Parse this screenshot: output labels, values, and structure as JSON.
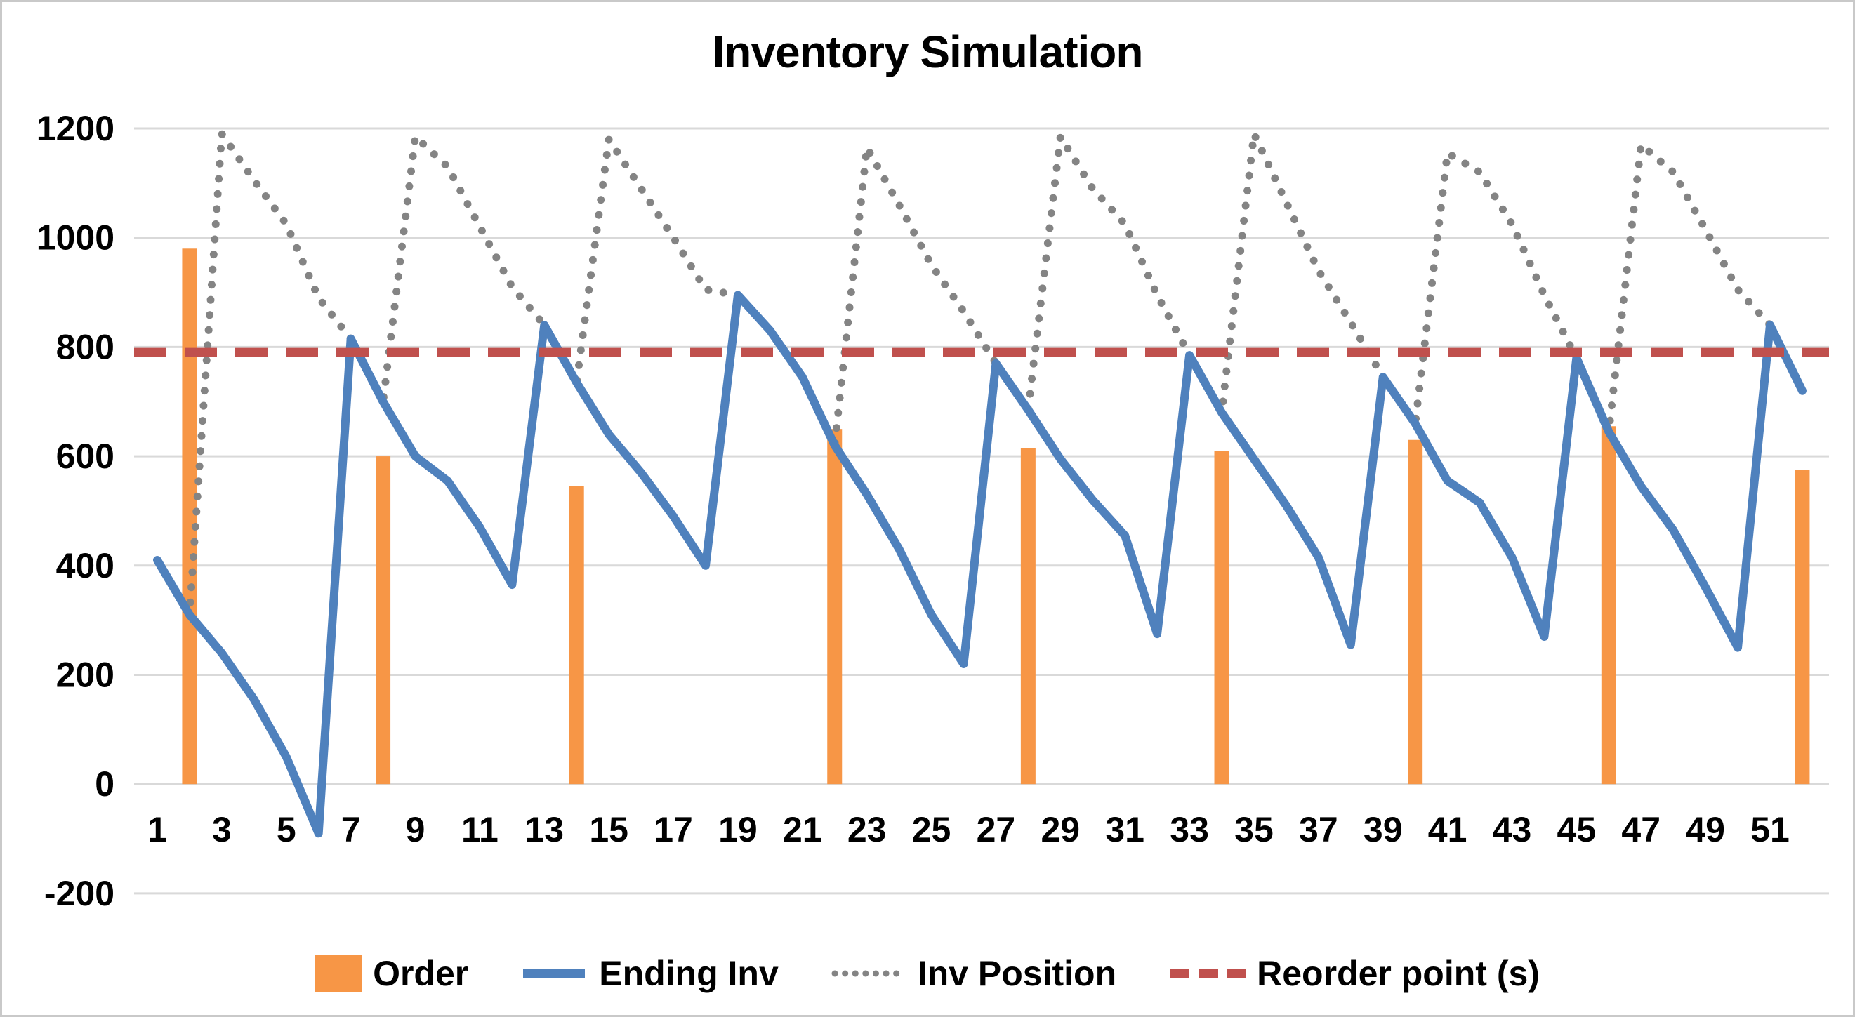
{
  "chart_data": {
    "type": "bar+line",
    "title": "Inventory Simulation",
    "n_periods": 52,
    "x_tick_labels": [
      1,
      3,
      5,
      7,
      9,
      11,
      13,
      15,
      17,
      19,
      21,
      23,
      25,
      27,
      29,
      31,
      33,
      35,
      37,
      39,
      41,
      43,
      45,
      47,
      49,
      51
    ],
    "y_ticks": [
      -200,
      0,
      200,
      400,
      600,
      800,
      1000,
      1200
    ],
    "ylim": [
      -200,
      1200
    ],
    "grid": true,
    "grid_color": "#D9D9D9",
    "legend_position": "bottom",
    "series": [
      {
        "name": "Order",
        "type": "bar",
        "color": "#F79646",
        "values": [
          0,
          980,
          0,
          0,
          0,
          0,
          0,
          600,
          0,
          0,
          0,
          0,
          0,
          545,
          0,
          0,
          0,
          0,
          0,
          0,
          0,
          650,
          0,
          0,
          0,
          0,
          0,
          615,
          0,
          0,
          0,
          0,
          0,
          610,
          0,
          0,
          0,
          0,
          0,
          630,
          0,
          0,
          0,
          0,
          0,
          655,
          0,
          0,
          0,
          0,
          0,
          575
        ]
      },
      {
        "name": "Ending Inv",
        "type": "line",
        "color": "#4F81BD",
        "values": [
          410,
          310,
          240,
          155,
          50,
          -90,
          815,
          700,
          600,
          555,
          470,
          365,
          840,
          735,
          640,
          570,
          490,
          400,
          895,
          830,
          745,
          620,
          530,
          430,
          310,
          220,
          770,
          685,
          595,
          520,
          455,
          275,
          785,
          680,
          595,
          510,
          415,
          255,
          745,
          660,
          555,
          515,
          415,
          270,
          780,
          645,
          545,
          465,
          360,
          250,
          840,
          720
        ]
      },
      {
        "name": "Inv Position",
        "type": "dotted-line",
        "color": "#848484",
        "values": [
          410,
          310,
          1190,
          1105,
          1025,
          890,
          815,
          700,
          1185,
          1130,
          1020,
          910,
          840,
          735,
          1180,
          1090,
          1000,
          905,
          895,
          830,
          745,
          620,
          1165,
          1060,
          950,
          865,
          770,
          685,
          1185,
          1090,
          1025,
          895,
          785,
          680,
          1190,
          1065,
          940,
          845,
          745,
          660,
          1155,
          1120,
          1025,
          895,
          780,
          645,
          1170,
          1120,
          1015,
          905,
          840,
          720
        ]
      },
      {
        "name": "Reorder point (s)",
        "type": "dashed-line",
        "color": "#C0504D",
        "value": 790
      }
    ]
  }
}
